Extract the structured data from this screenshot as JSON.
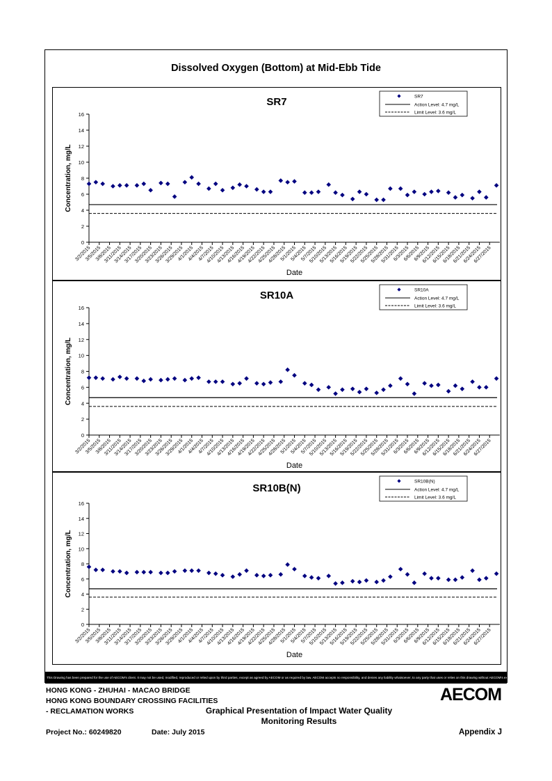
{
  "page": {
    "main_title": "Dissolved Oxygen (Bottom) at Mid-Ebb Tide",
    "disclaimer": "This Drawing has been prepared for the use of AECOM's client. It may not be used, modified, reproduced or relied upon by third parties, except as agreed by AECOM or as required by law. AECOM accepts no responsibility, and denies any liability whatsoever, to any party that uses or relies on this drawing without AECOM's express written consent.",
    "footer": {
      "line1": "HONG KONG - ZHUHAI - MACAO BRIDGE",
      "line2": "HONG KONG BOUNDARY CROSSING FACILITIES",
      "line3": "- RECLAMATION WORKS",
      "description_line1": "Graphical Presentation of Impact Water Quality",
      "description_line2": "Monitoring Results",
      "project_no": "Project No.: 60249820",
      "date": "Date: July 2015",
      "appendix": "Appendix J",
      "logo": "AECOM"
    }
  },
  "chart_data": [
    {
      "type": "scatter",
      "title": "SR7",
      "xlabel": "Date",
      "ylabel": "Concentration, mg/L",
      "ylim": [
        0,
        16
      ],
      "yticks": [
        0,
        2,
        4,
        6,
        8,
        10,
        12,
        14,
        16
      ],
      "categories": [
        "3/2/2015",
        "3/5/2015",
        "3/8/2015",
        "3/11/2015",
        "3/14/2015",
        "3/17/2015",
        "3/20/2015",
        "3/23/2015",
        "3/26/2015",
        "3/29/2015",
        "4/1/2015",
        "4/4/2015",
        "4/7/2015",
        "4/10/2015",
        "4/13/2015",
        "4/16/2015",
        "4/19/2015",
        "4/22/2015",
        "4/25/2015",
        "4/28/2015",
        "5/1/2015",
        "5/4/2015",
        "5/7/2015",
        "5/10/2015",
        "5/13/2015",
        "5/16/2015",
        "5/19/2015",
        "5/22/2015",
        "5/25/2015",
        "5/28/2015",
        "5/31/2015",
        "6/3/2015",
        "6/6/2015",
        "6/9/2015",
        "6/12/2015",
        "6/15/2015",
        "6/18/2015",
        "6/21/2015",
        "6/24/2015",
        "6/27/2015"
      ],
      "x_start": "3/2/2015",
      "x_end": "6/30/2015",
      "legend": {
        "placement": "top-right",
        "marker_label": "SR7",
        "action_label": "Action Level: 4.7 mg/L",
        "limit_label": "Limit Level: 3.6 mg/L"
      },
      "action_level": 4.7,
      "limit_level": 3.6,
      "points": [
        [
          "3/2/2015",
          7.3
        ],
        [
          "3/4/2015",
          7.5
        ],
        [
          "3/6/2015",
          7.3
        ],
        [
          "3/9/2015",
          7.0
        ],
        [
          "3/11/2015",
          7.1
        ],
        [
          "3/13/2015",
          7.1
        ],
        [
          "3/16/2015",
          7.1
        ],
        [
          "3/18/2015",
          7.3
        ],
        [
          "3/20/2015",
          6.5
        ],
        [
          "3/23/2015",
          7.4
        ],
        [
          "3/25/2015",
          7.3
        ],
        [
          "3/27/2015",
          5.7
        ],
        [
          "3/30/2015",
          7.5
        ],
        [
          "4/1/2015",
          8.1
        ],
        [
          "4/3/2015",
          7.3
        ],
        [
          "4/6/2015",
          6.7
        ],
        [
          "4/8/2015",
          7.3
        ],
        [
          "4/10/2015",
          6.5
        ],
        [
          "4/13/2015",
          6.8
        ],
        [
          "4/15/2015",
          7.2
        ],
        [
          "4/17/2015",
          7.0
        ],
        [
          "4/20/2015",
          6.6
        ],
        [
          "4/22/2015",
          6.3
        ],
        [
          "4/24/2015",
          6.3
        ],
        [
          "4/27/2015",
          7.7
        ],
        [
          "4/29/2015",
          7.5
        ],
        [
          "5/1/2015",
          7.6
        ],
        [
          "5/4/2015",
          6.2
        ],
        [
          "5/6/2015",
          6.2
        ],
        [
          "5/8/2015",
          6.3
        ],
        [
          "5/11/2015",
          7.2
        ],
        [
          "5/13/2015",
          6.2
        ],
        [
          "5/15/2015",
          5.9
        ],
        [
          "5/18/2015",
          5.4
        ],
        [
          "5/20/2015",
          6.3
        ],
        [
          "5/22/2015",
          6.0
        ],
        [
          "5/25/2015",
          5.3
        ],
        [
          "5/27/2015",
          5.3
        ],
        [
          "5/29/2015",
          6.7
        ],
        [
          "6/1/2015",
          6.7
        ],
        [
          "6/3/2015",
          5.9
        ],
        [
          "6/5/2015",
          6.3
        ],
        [
          "6/8/2015",
          6.0
        ],
        [
          "6/10/2015",
          6.3
        ],
        [
          "6/12/2015",
          6.4
        ],
        [
          "6/15/2015",
          6.2
        ],
        [
          "6/17/2015",
          5.6
        ],
        [
          "6/19/2015",
          5.9
        ],
        [
          "6/22/2015",
          5.5
        ],
        [
          "6/24/2015",
          6.3
        ],
        [
          "6/26/2015",
          5.6
        ],
        [
          "6/29/2015",
          7.1
        ]
      ]
    },
    {
      "type": "scatter",
      "title": "SR10A",
      "xlabel": "Date",
      "ylabel": "Concentration, mg/L",
      "ylim": [
        0,
        16
      ],
      "yticks": [
        0,
        2,
        4,
        6,
        8,
        10,
        12,
        14,
        16
      ],
      "categories": [
        "3/2/2015",
        "3/5/2015",
        "3/8/2015",
        "3/11/2015",
        "3/14/2015",
        "3/17/2015",
        "3/20/2015",
        "3/23/2015",
        "3/26/2015",
        "3/29/2015",
        "4/1/2015",
        "4/4/2015",
        "4/7/2015",
        "4/10/2015",
        "4/13/2015",
        "4/16/2015",
        "4/19/2015",
        "4/22/2015",
        "4/25/2015",
        "4/28/2015",
        "5/1/2015",
        "5/4/2015",
        "5/7/2015",
        "5/10/2015",
        "5/13/2015",
        "5/16/2015",
        "5/19/2015",
        "5/22/2015",
        "5/25/2015",
        "5/28/2015",
        "5/31/2015",
        "6/3/2015",
        "6/6/2015",
        "6/9/2015",
        "6/12/2015",
        "6/15/2015",
        "6/18/2015",
        "6/21/2015",
        "6/24/2015",
        "6/27/2015"
      ],
      "x_start": "3/2/2015",
      "x_end": "6/30/2015",
      "legend": {
        "placement": "top-right",
        "marker_label": "SR10A",
        "action_label": "Action Level: 4.7 mg/L",
        "limit_label": "Limit Level: 3.6 mg/L"
      },
      "action_level": 4.7,
      "limit_level": 3.6,
      "points": [
        [
          "3/2/2015",
          7.2
        ],
        [
          "3/4/2015",
          7.2
        ],
        [
          "3/6/2015",
          7.1
        ],
        [
          "3/9/2015",
          7.0
        ],
        [
          "3/11/2015",
          7.3
        ],
        [
          "3/13/2015",
          7.1
        ],
        [
          "3/16/2015",
          7.1
        ],
        [
          "3/18/2015",
          6.8
        ],
        [
          "3/20/2015",
          7.0
        ],
        [
          "3/23/2015",
          6.9
        ],
        [
          "3/25/2015",
          7.0
        ],
        [
          "3/27/2015",
          7.1
        ],
        [
          "3/30/2015",
          6.9
        ],
        [
          "4/1/2015",
          7.1
        ],
        [
          "4/3/2015",
          7.2
        ],
        [
          "4/6/2015",
          6.7
        ],
        [
          "4/8/2015",
          6.7
        ],
        [
          "4/10/2015",
          6.7
        ],
        [
          "4/13/2015",
          6.4
        ],
        [
          "4/15/2015",
          6.5
        ],
        [
          "4/17/2015",
          7.1
        ],
        [
          "4/20/2015",
          6.5
        ],
        [
          "4/22/2015",
          6.4
        ],
        [
          "4/24/2015",
          6.6
        ],
        [
          "4/27/2015",
          6.7
        ],
        [
          "4/29/2015",
          8.2
        ],
        [
          "5/1/2015",
          7.5
        ],
        [
          "5/4/2015",
          6.5
        ],
        [
          "5/6/2015",
          6.3
        ],
        [
          "5/8/2015",
          5.7
        ],
        [
          "5/11/2015",
          6.0
        ],
        [
          "5/13/2015",
          5.2
        ],
        [
          "5/15/2015",
          5.7
        ],
        [
          "5/18/2015",
          5.8
        ],
        [
          "5/20/2015",
          5.4
        ],
        [
          "5/22/2015",
          5.8
        ],
        [
          "5/25/2015",
          5.3
        ],
        [
          "5/27/2015",
          5.7
        ],
        [
          "5/29/2015",
          6.2
        ],
        [
          "6/1/2015",
          7.1
        ],
        [
          "6/3/2015",
          6.4
        ],
        [
          "6/5/2015",
          5.2
        ],
        [
          "6/8/2015",
          6.5
        ],
        [
          "6/10/2015",
          6.2
        ],
        [
          "6/12/2015",
          6.3
        ],
        [
          "6/15/2015",
          5.5
        ],
        [
          "6/17/2015",
          6.2
        ],
        [
          "6/19/2015",
          5.8
        ],
        [
          "6/22/2015",
          6.7
        ],
        [
          "6/24/2015",
          6.0
        ],
        [
          "6/26/2015",
          6.0
        ],
        [
          "6/29/2015",
          7.1
        ]
      ]
    },
    {
      "type": "scatter",
      "title": "SR10B(N)",
      "xlabel": "Date",
      "ylabel": "Concentration, mg/L",
      "ylim": [
        0,
        16
      ],
      "yticks": [
        0,
        2,
        4,
        6,
        8,
        10,
        12,
        14,
        16
      ],
      "categories": [
        "3/2/2015",
        "3/5/2015",
        "3/8/2015",
        "3/11/2015",
        "3/14/2015",
        "3/17/2015",
        "3/20/2015",
        "3/23/2015",
        "3/26/2015",
        "3/29/2015",
        "4/1/2015",
        "4/4/2015",
        "4/7/2015",
        "4/10/2015",
        "4/13/2015",
        "4/16/2015",
        "4/19/2015",
        "4/22/2015",
        "4/25/2015",
        "4/28/2015",
        "5/1/2015",
        "5/4/2015",
        "5/7/2015",
        "5/10/2015",
        "5/13/2015",
        "5/16/2015",
        "5/19/2015",
        "5/22/2015",
        "5/25/2015",
        "5/28/2015",
        "5/31/2015",
        "6/3/2015",
        "6/6/2015",
        "6/9/2015",
        "6/12/2015",
        "6/15/2015",
        "6/18/2015",
        "6/21/2015",
        "6/24/2015",
        "6/27/2015"
      ],
      "x_start": "3/2/2015",
      "x_end": "6/30/2015",
      "legend": {
        "placement": "top-right",
        "marker_label": "SR10B(N)",
        "action_label": "Action Level: 4.7 mg/L",
        "limit_label": "Limit Level: 3.6 mg/L"
      },
      "action_level": 4.7,
      "limit_level": 3.6,
      "points": [
        [
          "3/2/2015",
          7.6
        ],
        [
          "3/4/2015",
          7.2
        ],
        [
          "3/6/2015",
          7.2
        ],
        [
          "3/9/2015",
          7.0
        ],
        [
          "3/11/2015",
          7.0
        ],
        [
          "3/13/2015",
          6.8
        ],
        [
          "3/16/2015",
          6.9
        ],
        [
          "3/18/2015",
          6.9
        ],
        [
          "3/20/2015",
          6.9
        ],
        [
          "3/23/2015",
          6.8
        ],
        [
          "3/25/2015",
          6.8
        ],
        [
          "3/27/2015",
          7.0
        ],
        [
          "3/30/2015",
          7.1
        ],
        [
          "4/1/2015",
          7.1
        ],
        [
          "4/3/2015",
          7.1
        ],
        [
          "4/6/2015",
          6.8
        ],
        [
          "4/8/2015",
          6.7
        ],
        [
          "4/10/2015",
          6.5
        ],
        [
          "4/13/2015",
          6.3
        ],
        [
          "4/15/2015",
          6.6
        ],
        [
          "4/17/2015",
          7.1
        ],
        [
          "4/20/2015",
          6.5
        ],
        [
          "4/22/2015",
          6.4
        ],
        [
          "4/24/2015",
          6.5
        ],
        [
          "4/27/2015",
          6.6
        ],
        [
          "4/29/2015",
          7.9
        ],
        [
          "5/1/2015",
          7.3
        ],
        [
          "5/4/2015",
          6.4
        ],
        [
          "5/6/2015",
          6.2
        ],
        [
          "5/8/2015",
          6.1
        ],
        [
          "5/11/2015",
          6.4
        ],
        [
          "5/13/2015",
          5.4
        ],
        [
          "5/15/2015",
          5.5
        ],
        [
          "5/18/2015",
          5.7
        ],
        [
          "5/20/2015",
          5.6
        ],
        [
          "5/22/2015",
          5.8
        ],
        [
          "5/25/2015",
          5.6
        ],
        [
          "5/27/2015",
          5.8
        ],
        [
          "5/29/2015",
          6.3
        ],
        [
          "6/1/2015",
          7.3
        ],
        [
          "6/3/2015",
          6.6
        ],
        [
          "6/5/2015",
          5.5
        ],
        [
          "6/8/2015",
          6.7
        ],
        [
          "6/10/2015",
          6.1
        ],
        [
          "6/12/2015",
          6.1
        ],
        [
          "6/15/2015",
          5.9
        ],
        [
          "6/17/2015",
          5.9
        ],
        [
          "6/19/2015",
          6.2
        ],
        [
          "6/22/2015",
          7.1
        ],
        [
          "6/24/2015",
          5.9
        ],
        [
          "6/26/2015",
          6.1
        ],
        [
          "6/29/2015",
          6.7
        ]
      ]
    }
  ]
}
